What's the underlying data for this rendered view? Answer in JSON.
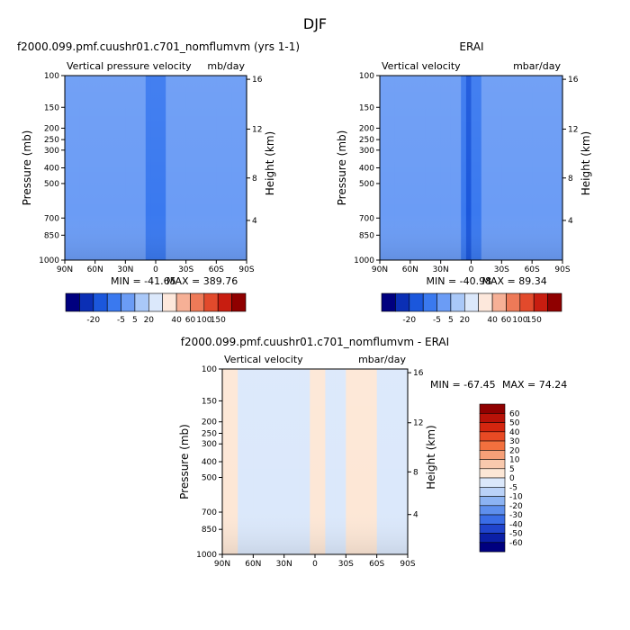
{
  "figure": {
    "main_title": "DJF"
  },
  "chart_data": [
    {
      "type": "heatmap",
      "panel": "model",
      "title": "f2000.099.pmf.cuushr01.c701_nomflumvm (yrs 1-1)",
      "left_label": "Vertical pressure velocity",
      "units_label": "mb/day",
      "ylabel": "Pressure (mb)",
      "y2label": "Height (km)",
      "x_ticks": [
        "90N",
        "60N",
        "30N",
        "0",
        "30S",
        "60S",
        "90S"
      ],
      "y_ticks": [
        "100",
        "150",
        "200",
        "250",
        "300",
        "400",
        "500",
        "700",
        "850",
        "1000"
      ],
      "y2_ticks": [
        "16",
        "12",
        "8",
        "4"
      ],
      "min_label": "MIN = -41.65",
      "max_label": "MAX = 389.76",
      "colorbar": {
        "labels": [
          "-20",
          "-5",
          "5",
          "20",
          "40",
          "60",
          "100",
          "150"
        ],
        "colors": [
          "#00007f",
          "#0b2fb5",
          "#1b57dc",
          "#3a79ef",
          "#6b9cf5",
          "#a9c8f8",
          "#dbe8fb",
          "#fde8dc",
          "#f6b096",
          "#ee7a58",
          "#e24a2c",
          "#c81d10",
          "#8f0000"
        ]
      },
      "zones": [
        {
          "lat": 90,
          "value": -12
        },
        {
          "lat": 75,
          "value": -14
        },
        {
          "lat": 60,
          "value": -12
        },
        {
          "lat": 45,
          "value": -9
        },
        {
          "lat": 30,
          "value": -2
        },
        {
          "lat": 20,
          "value": -6
        },
        {
          "lat": 10,
          "value": -12
        },
        {
          "lat": 5,
          "value": -22
        },
        {
          "lat": 0,
          "value": -18
        },
        {
          "lat": -10,
          "value": -12
        },
        {
          "lat": -20,
          "value": -6
        },
        {
          "lat": -30,
          "value": -9
        },
        {
          "lat": -45,
          "value": -12
        },
        {
          "lat": -60,
          "value": -13
        },
        {
          "lat": -75,
          "value": -12
        },
        {
          "lat": -90,
          "value": -10
        }
      ]
    },
    {
      "type": "heatmap",
      "panel": "obs",
      "title": "ERAI",
      "left_label": "Vertical velocity",
      "units_label": "mbar/day",
      "ylabel": "Pressure (mb)",
      "y2label": "Height (km)",
      "x_ticks": [
        "90N",
        "60N",
        "30N",
        "0",
        "30S",
        "60S",
        "90S"
      ],
      "y_ticks": [
        "100",
        "150",
        "200",
        "250",
        "300",
        "400",
        "500",
        "700",
        "850",
        "1000"
      ],
      "y2_ticks": [
        "16",
        "12",
        "8",
        "4"
      ],
      "min_label": "MIN = -40.98",
      "max_label": "MAX = 89.34",
      "colorbar": {
        "labels": [
          "-20",
          "-5",
          "5",
          "20",
          "40",
          "60",
          "100",
          "150"
        ],
        "colors": [
          "#00007f",
          "#0b2fb5",
          "#1b57dc",
          "#3a79ef",
          "#6b9cf5",
          "#a9c8f8",
          "#dbe8fb",
          "#fde8dc",
          "#f6b096",
          "#ee7a58",
          "#e24a2c",
          "#c81d10",
          "#8f0000"
        ]
      },
      "zones": [
        {
          "lat": 90,
          "value": -12
        },
        {
          "lat": 75,
          "value": -10
        },
        {
          "lat": 60,
          "value": -12
        },
        {
          "lat": 45,
          "value": -9
        },
        {
          "lat": 30,
          "value": -3
        },
        {
          "lat": 20,
          "value": -7
        },
        {
          "lat": 10,
          "value": -14
        },
        {
          "lat": 5,
          "value": -24
        },
        {
          "lat": 0,
          "value": -20
        },
        {
          "lat": -10,
          "value": -12
        },
        {
          "lat": -20,
          "value": -5
        },
        {
          "lat": -30,
          "value": -9
        },
        {
          "lat": -45,
          "value": -12
        },
        {
          "lat": -60,
          "value": -13
        },
        {
          "lat": -75,
          "value": -8
        },
        {
          "lat": -90,
          "value": -4
        }
      ]
    },
    {
      "type": "heatmap",
      "panel": "difference",
      "title": "f2000.099.pmf.cuushr01.c701_nomflumvm - ERAI",
      "left_label": "Vertical velocity",
      "units_label": "mbar/day",
      "ylabel": "Pressure (mb)",
      "y2label": "Height (km)",
      "x_ticks": [
        "90N",
        "60N",
        "30N",
        "0",
        "30S",
        "60S",
        "90S"
      ],
      "y_ticks": [
        "100",
        "150",
        "200",
        "250",
        "300",
        "400",
        "500",
        "700",
        "850",
        "1000"
      ],
      "y2_ticks": [
        "16",
        "12",
        "8",
        "4"
      ],
      "min_label": "MIN = -67.45",
      "max_label": "MAX =  74.24",
      "colorbar": {
        "labels": [
          "60",
          "50",
          "40",
          "30",
          "20",
          "10",
          "5",
          "0",
          "-5",
          "-10",
          "-20",
          "-30",
          "-40",
          "-50",
          "-60"
        ],
        "colors": [
          "#8f0000",
          "#b81208",
          "#d4260f",
          "#e84a24",
          "#f2703e",
          "#f6a078",
          "#f9c9ad",
          "#fde7d6",
          "#dbe8fb",
          "#bad2f8",
          "#8cb3f3",
          "#5e8fed",
          "#3a6de6",
          "#2044cc",
          "#0b1fa6",
          "#00007f"
        ]
      },
      "zones": [
        {
          "lat": 90,
          "value": -2
        },
        {
          "lat": 75,
          "value": 3
        },
        {
          "lat": 60,
          "value": -3
        },
        {
          "lat": 45,
          "value": -1
        },
        {
          "lat": 30,
          "value": 1
        },
        {
          "lat": 15,
          "value": -4
        },
        {
          "lat": 5,
          "value": 2
        },
        {
          "lat": 0,
          "value": 8
        },
        {
          "lat": -10,
          "value": -6
        },
        {
          "lat": -20,
          "value": -3
        },
        {
          "lat": -30,
          "value": 2
        },
        {
          "lat": -45,
          "value": 4
        },
        {
          "lat": -60,
          "value": -2
        },
        {
          "lat": -75,
          "value": -1
        },
        {
          "lat": -90,
          "value": -3
        }
      ]
    }
  ]
}
